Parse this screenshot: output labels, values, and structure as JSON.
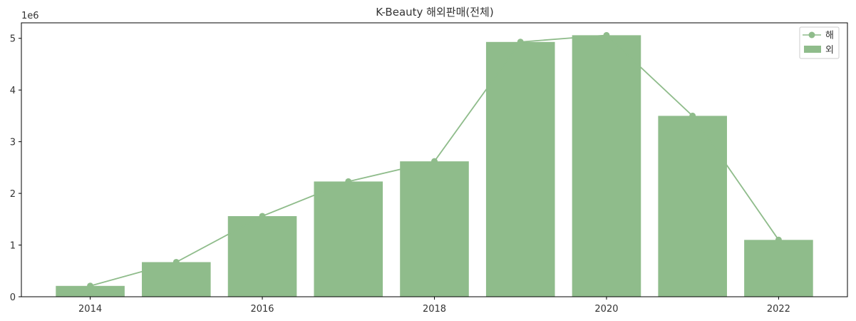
{
  "chart_data": {
    "type": "bar",
    "title": "K-Beauty 해외판매(전체)",
    "scale_label": "1e6",
    "xlabel": "",
    "ylabel": "",
    "x": [
      2014,
      2015,
      2016,
      2017,
      2018,
      2019,
      2020,
      2021,
      2022
    ],
    "xlim": [
      2013.2,
      2022.8
    ],
    "ylim": [
      0,
      5.3
    ],
    "x_ticks": [
      2014,
      2016,
      2018,
      2020,
      2022
    ],
    "y_ticks": [
      0,
      1,
      2,
      3,
      4,
      5
    ],
    "series": [
      {
        "name": "해",
        "type": "line",
        "marker": "circle",
        "values": [
          0.21,
          0.67,
          1.56,
          2.23,
          2.62,
          4.93,
          5.06,
          3.5,
          1.1
        ]
      },
      {
        "name": "외",
        "type": "bar",
        "values": [
          0.21,
          0.67,
          1.56,
          2.23,
          2.62,
          4.93,
          5.06,
          3.5,
          1.1
        ]
      }
    ],
    "colors": {
      "bar": "#8fbc8b",
      "line": "#8fbc8b",
      "axis": "#000000",
      "text": "#333333"
    },
    "grid": false,
    "legend_position": "top-right"
  }
}
